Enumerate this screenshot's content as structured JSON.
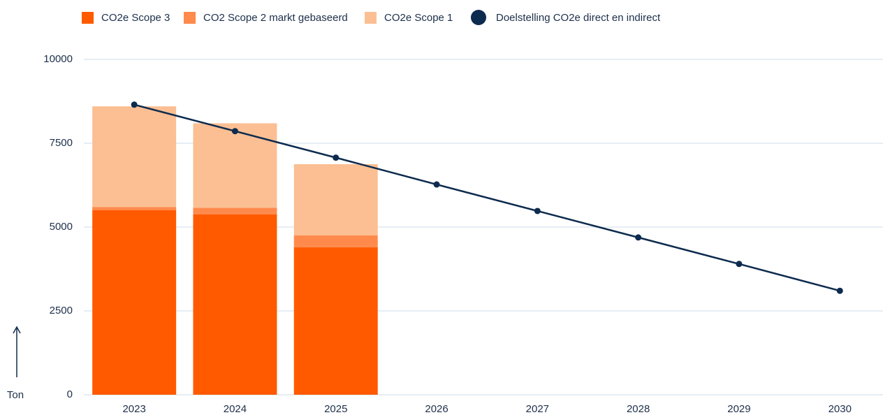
{
  "chart_data": {
    "type": "bar",
    "stacked": true,
    "categories": [
      "2023",
      "2024",
      "2025",
      "2026",
      "2027",
      "2028",
      "2029",
      "2030"
    ],
    "series": [
      {
        "name": "CO2e Scope 3",
        "color": "#ff5a00",
        "values": [
          5500,
          5375,
          4400,
          null,
          null,
          null,
          null,
          null
        ]
      },
      {
        "name": "CO2 Scope 2 markt gebaseerd",
        "color": "#ff8a4c",
        "values": [
          100,
          200,
          350,
          null,
          null,
          null,
          null,
          null
        ]
      },
      {
        "name": "CO2e Scope 1",
        "color": "#fbbf93",
        "values": [
          3000,
          2520,
          2125,
          null,
          null,
          null,
          null,
          null
        ]
      },
      {
        "name": "Doelstelling CO2e direct en indirect",
        "color": "#0d2b4e",
        "type": "line",
        "values": [
          8650,
          7860,
          7070,
          6270,
          5480,
          4690,
          3900,
          3100
        ]
      }
    ],
    "y_label": "Ton",
    "ylim": [
      0,
      10000
    ],
    "yticks": [
      0,
      2500,
      5000,
      7500,
      10000
    ],
    "grid": true
  }
}
